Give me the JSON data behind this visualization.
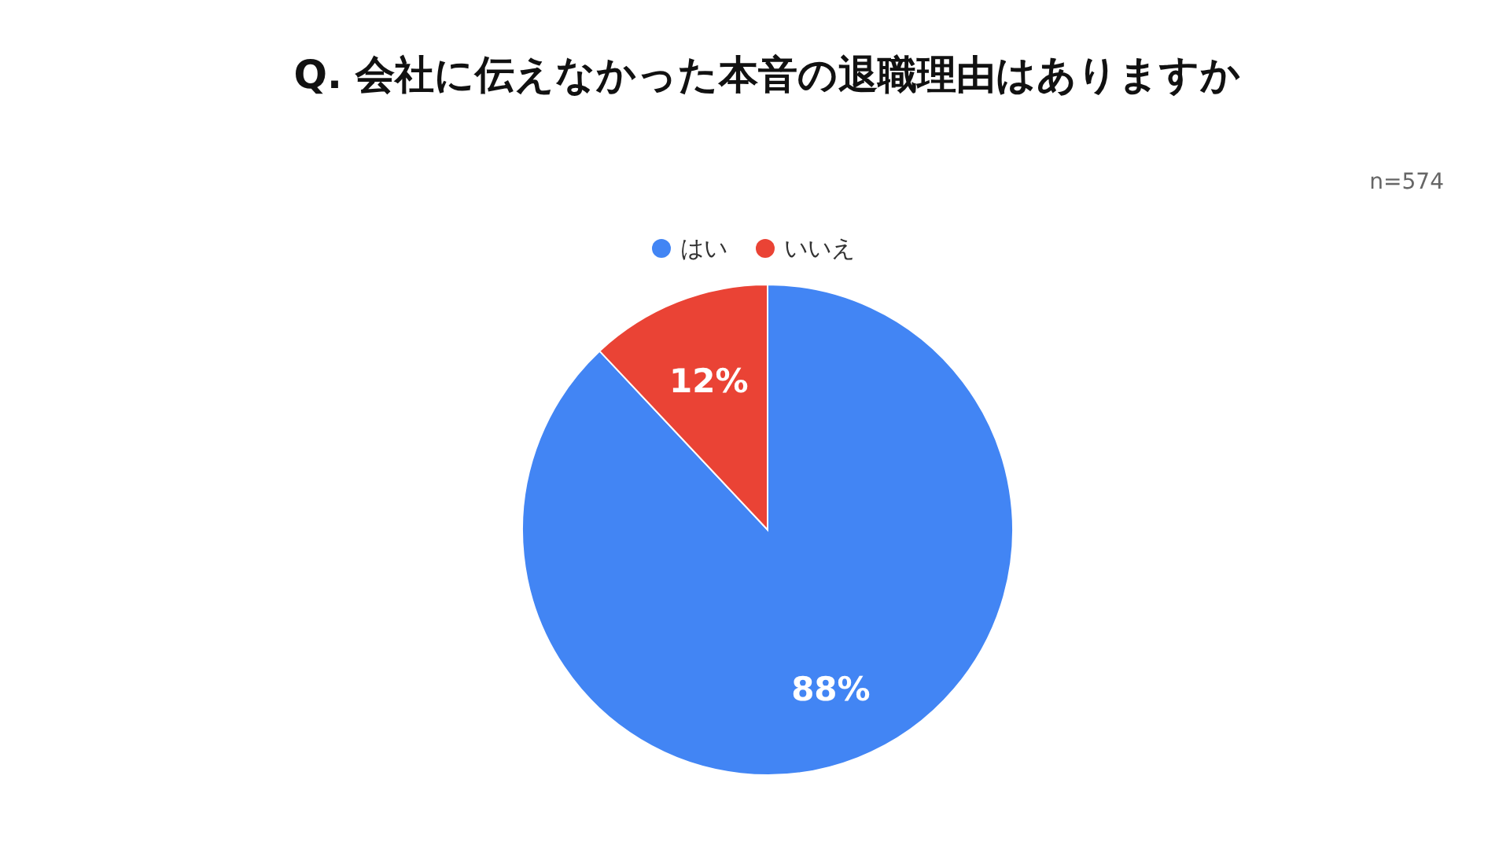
{
  "chart_data": {
    "type": "pie",
    "title": "Q. 会社に伝えなかった本音の退職理由はありますか",
    "categories": [
      "はい",
      "いいえ"
    ],
    "values": [
      88,
      12
    ],
    "value_labels": [
      "88%",
      "12%"
    ],
    "colors": [
      "#4285f4",
      "#ea4335"
    ],
    "legend": "top",
    "annotations": [
      "n=574"
    ]
  }
}
